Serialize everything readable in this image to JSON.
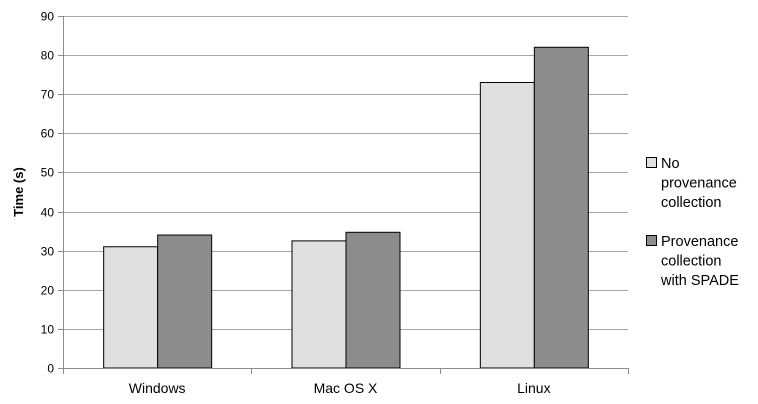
{
  "chart_data": {
    "type": "bar",
    "categories": [
      "Windows",
      "Mac OS X",
      "Linux"
    ],
    "series": [
      {
        "name": "No provenance collection",
        "values": [
          31,
          32.5,
          73
        ],
        "color": "#e0e0e0"
      },
      {
        "name": "Provenance collection with SPADE",
        "values": [
          34,
          34.7,
          82
        ],
        "color": "#8c8c8c"
      }
    ],
    "title": "",
    "xlabel": "",
    "ylabel": "Time (s)",
    "ylim": [
      0,
      90
    ],
    "yticks": [
      0,
      10,
      20,
      30,
      40,
      50,
      60,
      70,
      80,
      90
    ],
    "grid": true,
    "legend_position": "right",
    "legend_lines": [
      [
        "No",
        "provenance",
        "collection"
      ],
      [
        "Provenance",
        "collection",
        "with SPADE"
      ]
    ]
  }
}
